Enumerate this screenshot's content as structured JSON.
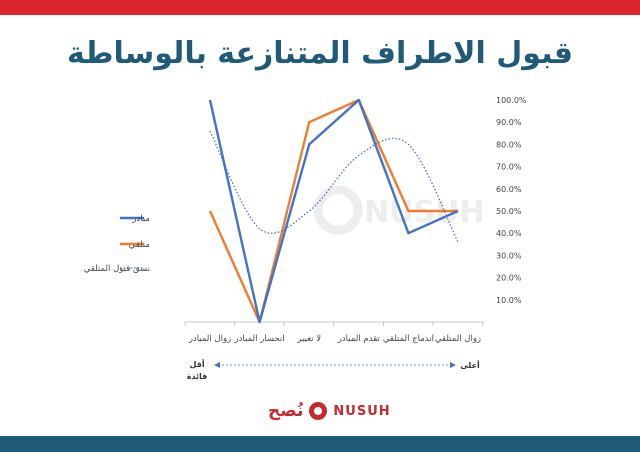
{
  "colors": {
    "top_bar": "#d9242d",
    "bottom_bar": "#1f5a78",
    "title": "#1f5a78",
    "series_initiator": "#4472c4",
    "series_receiver": "#ed7d31",
    "trend": "#4472c4",
    "logo": "#c62a2f"
  },
  "title": "قبول الاطراف المتنازعة بالوساطة",
  "axis_scale": {
    "less": "أقل فائدة",
    "more": "أعلى"
  },
  "watermark": "NUSUH",
  "logo": {
    "arabic": "نُصح",
    "latin": "NUSUH"
  },
  "chart_data": {
    "type": "line",
    "categories": [
      "زوال المبادر",
      "انحسار المبادر",
      "لا تغيير",
      "تقدم المبادر",
      "اندماج المتلقي",
      "زوال المتلقي"
    ],
    "series": [
      {
        "name": "مبادر",
        "values": [
          1.0,
          0.0,
          0.8,
          1.0,
          0.4,
          0.5
        ]
      },
      {
        "name": "متلقي",
        "values": [
          0.5,
          0.0,
          0.9,
          1.0,
          0.5,
          0.5
        ]
      },
      {
        "name": "نسق قبول المتلقي",
        "style": "dotted",
        "values": [
          0.86,
          0.42,
          0.5,
          0.75,
          0.8,
          0.36
        ]
      }
    ],
    "y_ticks": [
      "10.0%",
      "20.0%",
      "30.0%",
      "40.0%",
      "50.0%",
      "60.0%",
      "70.0%",
      "80.0%",
      "90.0%",
      "100.0%"
    ],
    "ylim": [
      0,
      1
    ],
    "y_axis_side": "right",
    "legend": "left",
    "grid": false
  }
}
